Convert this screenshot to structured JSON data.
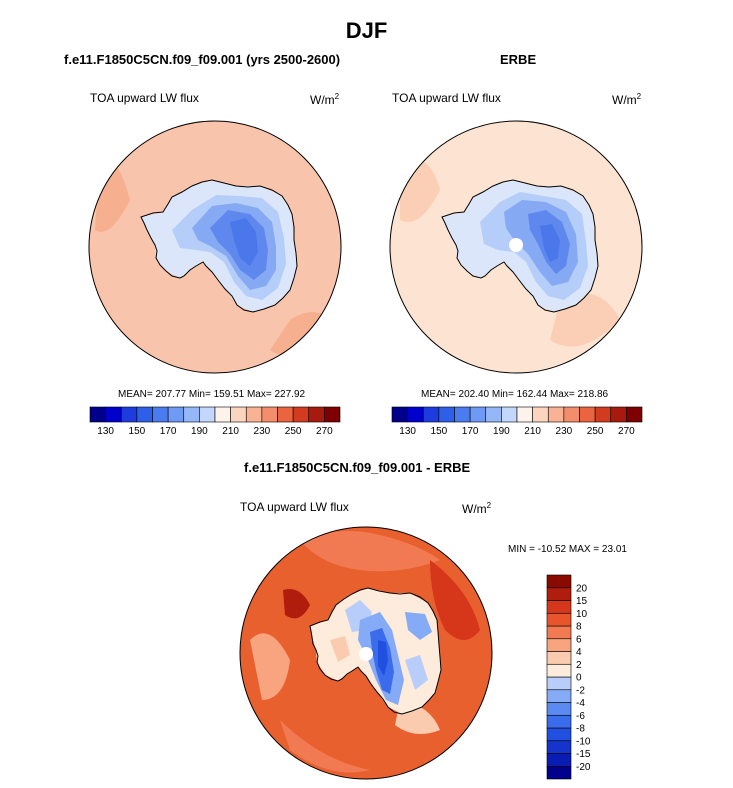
{
  "main_title": "DJF",
  "panels": [
    {
      "title": "f.e11.F1850C5CN.f09_f09.001 (yrs 2500-2600)",
      "variable_label": "TOA upward LW flux",
      "units": "W/m",
      "units_exp": "2",
      "stats": "MEAN= 207.77  Min= 159.51  Max= 227.92"
    },
    {
      "title": "ERBE",
      "variable_label": "TOA upward LW flux",
      "units": "W/m",
      "units_exp": "2",
      "stats": "MEAN= 202.40  Min= 162.44  Max= 218.86"
    },
    {
      "title": "f.e11.F1850C5CN.f09_f09.001 - ERBE",
      "variable_label": "TOA upward LW flux",
      "units": "W/m",
      "units_exp": "2",
      "stats": "MIN = -10.52 MAX =  23.01"
    }
  ],
  "chart_data": [
    {
      "type": "heatmap",
      "title": "f.e11.F1850C5CN.f09_f09.001 (yrs 2500-2600)",
      "subtitle": "TOA upward LW flux (W/m2)",
      "projection": "south-polar-stereographic",
      "mean": 207.77,
      "min": 159.51,
      "max": 227.92,
      "colorbar": {
        "orientation": "horizontal",
        "levels": [
          130,
          140,
          150,
          160,
          170,
          180,
          190,
          200,
          210,
          220,
          230,
          240,
          250,
          260,
          270
        ],
        "tick_labels": [
          "130",
          "150",
          "170",
          "190",
          "210",
          "230",
          "250",
          "270"
        ],
        "colors": [
          "#00008b",
          "#0000cd",
          "#1e3cde",
          "#2e5fe8",
          "#4a7cf0",
          "#6e99f5",
          "#95b7f8",
          "#c3d6fb",
          "#fef3ea",
          "#fcd5c0",
          "#f8b395",
          "#f48d6b",
          "#ea6440",
          "#d23b1e",
          "#a71a0d",
          "#7f0000"
        ]
      }
    },
    {
      "type": "heatmap",
      "title": "ERBE",
      "subtitle": "TOA upward LW flux (W/m2)",
      "projection": "south-polar-stereographic",
      "mean": 202.4,
      "min": 162.44,
      "max": 218.86,
      "colorbar": {
        "orientation": "horizontal",
        "levels": [
          130,
          140,
          150,
          160,
          170,
          180,
          190,
          200,
          210,
          220,
          230,
          240,
          250,
          260,
          270
        ],
        "tick_labels": [
          "130",
          "150",
          "170",
          "190",
          "210",
          "230",
          "250",
          "270"
        ],
        "colors": [
          "#00008b",
          "#0000cd",
          "#1e3cde",
          "#2e5fe8",
          "#4a7cf0",
          "#6e99f5",
          "#95b7f8",
          "#c3d6fb",
          "#fef3ea",
          "#fcd5c0",
          "#f8b395",
          "#f48d6b",
          "#ea6440",
          "#d23b1e",
          "#a71a0d",
          "#7f0000"
        ]
      }
    },
    {
      "type": "heatmap",
      "title": "f.e11.F1850C5CN.f09_f09.001 - ERBE",
      "subtitle": "TOA upward LW flux (W/m2)",
      "projection": "south-polar-stereographic",
      "min": -10.52,
      "max": 23.01,
      "colorbar": {
        "orientation": "vertical",
        "levels": [
          -20,
          -15,
          -10,
          -8,
          -6,
          -4,
          -2,
          0,
          2,
          4,
          6,
          8,
          10,
          15,
          20
        ],
        "tick_labels": [
          "-20",
          "-15",
          "-10",
          "-8",
          "-6",
          "-4",
          "-2",
          "0",
          "2",
          "4",
          "6",
          "8",
          "10",
          "15",
          "20"
        ],
        "colors": [
          "#00008b",
          "#0a1db3",
          "#1434cc",
          "#2150e0",
          "#3a6ceb",
          "#5b8af2",
          "#85aaf6",
          "#b8cdfa",
          "#fdebdc",
          "#fbcbb0",
          "#f7a47f",
          "#f27a52",
          "#e8552c",
          "#d6361a",
          "#b11d0c",
          "#8b0a00"
        ]
      }
    }
  ],
  "colors": {
    "panel1_ocean": "#f9c4ac",
    "panel2_ocean": "#fde3d1",
    "panel3_ocean": "#e9602f",
    "coast": "#000000"
  }
}
